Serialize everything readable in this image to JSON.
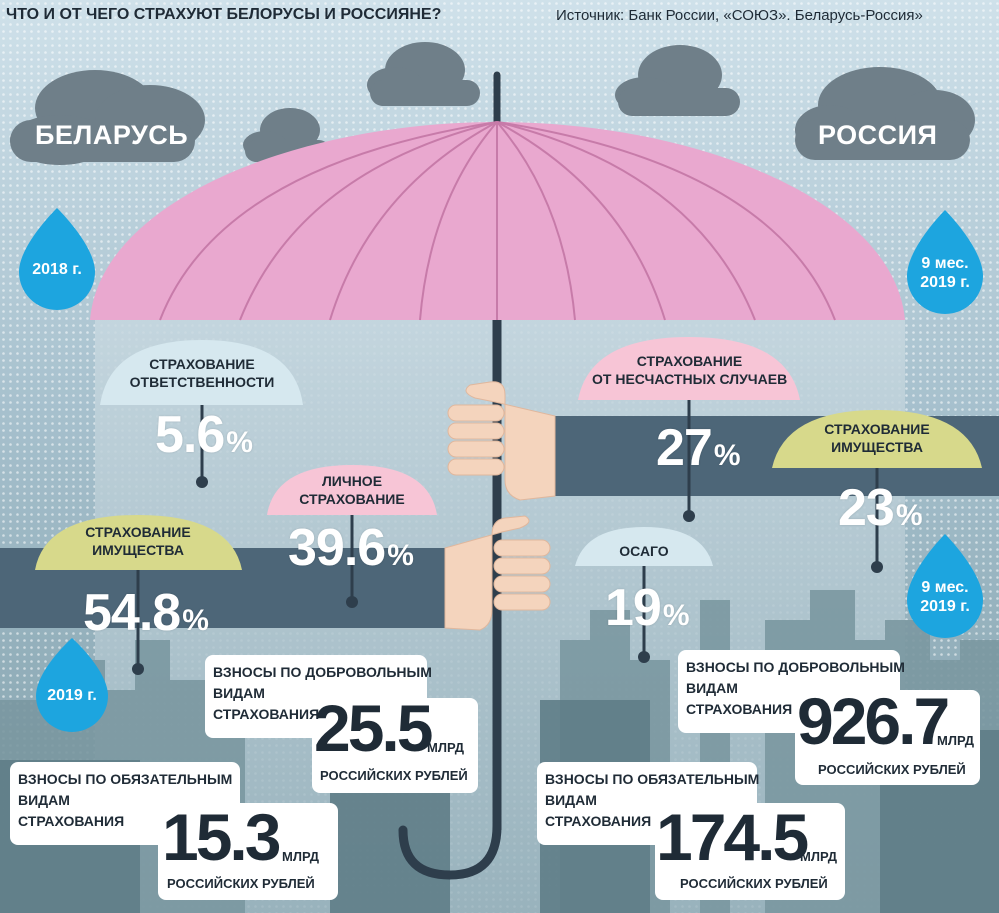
{
  "header": {
    "title": "ЧТО И ОТ ЧЕГО СТРАХУЮТ БЕЛОРУСЫ И РОССИЯНЕ?",
    "source": "Источник: Банк России, «СОЮЗ». Беларусь-Россия»"
  },
  "colors": {
    "sky": "#a9c3d1",
    "umbrella_pink": "#e8a6cc",
    "arm": "#4d6678",
    "cloud": "#6f7f89",
    "drop": "#22a6e0",
    "city": "#6f8d96"
  },
  "belarus": {
    "country": "БЕЛАРУСЬ",
    "period_top": "2018 г.",
    "period_bottom": "2019 г.",
    "items": [
      {
        "label_1": "СТРАХОВАНИЕ",
        "label_2": "ОТВЕТСТВЕННОСТИ",
        "value": "5.6",
        "unit": "%"
      },
      {
        "label_1": "ЛИЧНОЕ",
        "label_2": "СТРАХОВАНИЕ",
        "value": "39.6",
        "unit": "%"
      },
      {
        "label_1": "СТРАХОВАНИЕ",
        "label_2": "ИМУЩЕСТВА",
        "value": "54.8",
        "unit": "%"
      }
    ],
    "voluntary": {
      "label_1": "ВЗНОСЫ ПО ДОБРОВОЛЬНЫМ",
      "label_2": "ВИДАМ",
      "label_3": "СТРАХОВАНИЯ",
      "value": "25.5",
      "unit_1": "МЛРД",
      "unit_2": "РОССИЙСКИХ РУБЛЕЙ"
    },
    "mandatory": {
      "label_1": "ВЗНОСЫ ПО ОБЯЗАТЕЛЬНЫМ",
      "label_2": "ВИДАМ",
      "label_3": "СТРАХОВАНИЯ",
      "value": "15.3",
      "unit_1": "МЛРД",
      "unit_2": "РОССИЙСКИХ РУБЛЕЙ"
    }
  },
  "russia": {
    "country": "РОССИЯ",
    "period_top": "9 мес.\n2019 г.",
    "period_top_1": "9 мес.",
    "period_top_2": "2019 г.",
    "period_bottom_1": "9 мес.",
    "period_bottom_2": "2019 г.",
    "items": [
      {
        "label_1": "СТРАХОВАНИЕ",
        "label_2": "ОТ НЕСЧАСТНЫХ СЛУЧАЕВ",
        "value": "27",
        "unit": "%"
      },
      {
        "label_1": "СТРАХОВАНИЕ",
        "label_2": "ИМУЩЕСТВА",
        "value": "23",
        "unit": "%"
      },
      {
        "label_1": "ОСАГО",
        "label_2": "",
        "value": "19",
        "unit": "%"
      }
    ],
    "voluntary": {
      "label_1": "ВЗНОСЫ ПО ДОБРОВОЛЬНЫМ",
      "label_2": "ВИДАМ",
      "label_3": "СТРАХОВАНИЯ",
      "value": "926.7",
      "unit_1": "МЛРД",
      "unit_2": "РОССИЙСКИХ РУБЛЕЙ"
    },
    "mandatory": {
      "label_1": "ВЗНОСЫ ПО ОБЯЗАТЕЛЬНЫМ",
      "label_2": "ВИДАМ",
      "label_3": "СТРАХОВАНИЯ",
      "value": "174.5",
      "unit_1": "МЛРД",
      "unit_2": "РОССИЙСКИХ РУБЛЕЙ"
    }
  }
}
